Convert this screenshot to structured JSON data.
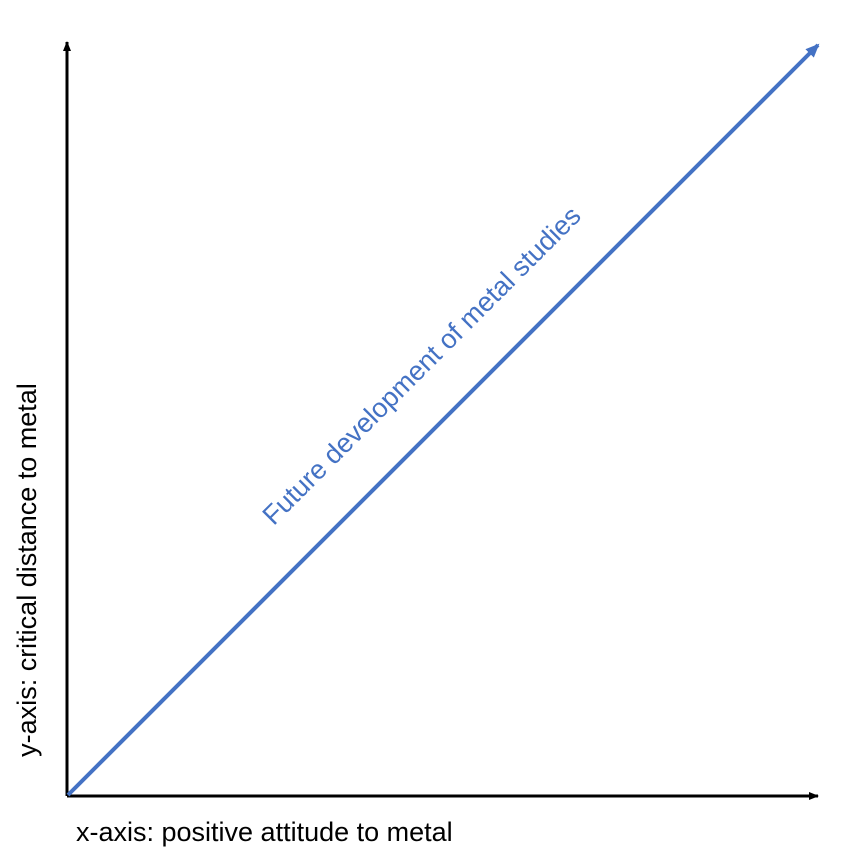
{
  "diagram": {
    "x_axis_label": "x-axis: positive attitude to metal",
    "y_axis_label": "y-axis: critical distance to metal",
    "trend_label": "Future development of metal studies",
    "colors": {
      "axis": "#000000",
      "trend": "#4472C4",
      "background": "#ffffff"
    }
  }
}
